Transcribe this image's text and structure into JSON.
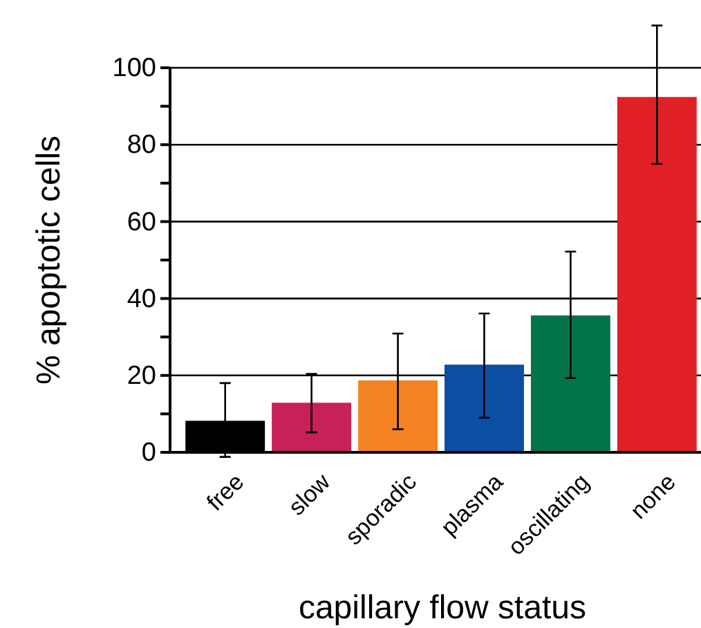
{
  "chart_data": {
    "type": "bar",
    "xlabel": "capillary flow status",
    "ylabel": "% apoptotic cells",
    "categories": [
      "free",
      "slow",
      "sporadic",
      "plasma",
      "oscillating",
      "none"
    ],
    "values": [
      8.2,
      12.9,
      18.7,
      22.8,
      35.6,
      92.4
    ],
    "colors": [
      "#000000",
      "#c8205a",
      "#f48321",
      "#0c4ea2",
      "#02744a",
      "#e01f26"
    ],
    "errors": [
      [
        -1.2,
        18
      ],
      [
        5.2,
        20.4
      ],
      [
        6,
        30.9
      ],
      [
        9,
        36.1
      ],
      [
        19.3,
        52.2
      ],
      [
        75,
        111
      ]
    ],
    "ylim": [
      0,
      100
    ],
    "yticks": [
      0,
      {
        "value": 10,
        "label": null
      },
      20,
      {
        "value": 30,
        "label": null
      },
      40,
      {
        "value": 50,
        "label": null
      },
      60,
      {
        "value": 70,
        "label": null
      },
      80,
      {
        "value": 90,
        "label": null
      },
      100
    ],
    "grid": "y"
  }
}
